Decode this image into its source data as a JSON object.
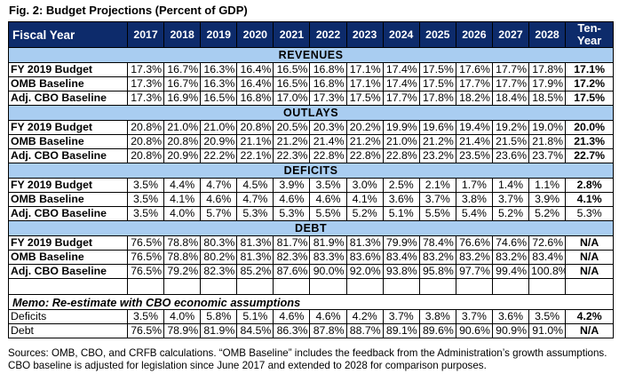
{
  "title": "Fig. 2: Budget Projections (Percent of GDP)",
  "header": {
    "label": "Fiscal Year",
    "years": [
      "2017",
      "2018",
      "2019",
      "2020",
      "2021",
      "2022",
      "2023",
      "2024",
      "2025",
      "2026",
      "2027",
      "2028"
    ],
    "ten_year": "Ten-Year",
    "ten_year_line1": "Ten-",
    "ten_year_line2": "Year"
  },
  "colors": {
    "header_bg": "#0d2b6b",
    "section_bg": "#a9cdf1",
    "header_text": "#ffffff"
  },
  "sections": [
    {
      "title": "REVENUES",
      "rows": [
        {
          "label": "FY 2019 Budget",
          "values": [
            "17.3%",
            "16.7%",
            "16.3%",
            "16.4%",
            "16.5%",
            "16.8%",
            "17.1%",
            "17.4%",
            "17.5%",
            "17.6%",
            "17.7%",
            "17.8%"
          ],
          "ten_year": "17.1%"
        },
        {
          "label": "OMB Baseline",
          "values": [
            "17.3%",
            "16.7%",
            "16.3%",
            "16.4%",
            "16.5%",
            "16.8%",
            "17.1%",
            "17.4%",
            "17.5%",
            "17.7%",
            "17.7%",
            "17.9%"
          ],
          "ten_year": "17.2%"
        },
        {
          "label": "Adj. CBO Baseline",
          "values": [
            "17.3%",
            "16.9%",
            "16.5%",
            "16.8%",
            "17.0%",
            "17.3%",
            "17.5%",
            "17.7%",
            "17.8%",
            "18.2%",
            "18.4%",
            "18.5%"
          ],
          "ten_year": "17.5%"
        }
      ]
    },
    {
      "title": "OUTLAYS",
      "rows": [
        {
          "label": "FY 2019 Budget",
          "values": [
            "20.8%",
            "21.0%",
            "21.0%",
            "20.8%",
            "20.5%",
            "20.3%",
            "20.2%",
            "19.9%",
            "19.6%",
            "19.4%",
            "19.2%",
            "19.0%"
          ],
          "ten_year": "20.0%"
        },
        {
          "label": "OMB Baseline",
          "values": [
            "20.8%",
            "20.8%",
            "20.9%",
            "21.1%",
            "21.2%",
            "21.4%",
            "21.2%",
            "21.0%",
            "21.2%",
            "21.4%",
            "21.5%",
            "21.8%"
          ],
          "ten_year": "21.3%"
        },
        {
          "label": "Adj. CBO Baseline",
          "values": [
            "20.8%",
            "20.9%",
            "22.2%",
            "22.1%",
            "22.3%",
            "22.8%",
            "22.8%",
            "22.8%",
            "23.2%",
            "23.5%",
            "23.6%",
            "23.7%"
          ],
          "ten_year": "22.7%"
        }
      ]
    },
    {
      "title": "DEFICITS",
      "rows": [
        {
          "label": "FY 2019 Budget",
          "values": [
            "3.5%",
            "4.4%",
            "4.7%",
            "4.5%",
            "3.9%",
            "3.5%",
            "3.0%",
            "2.5%",
            "2.1%",
            "1.7%",
            "1.4%",
            "1.1%"
          ],
          "ten_year": "2.8%"
        },
        {
          "label": "OMB Baseline",
          "values": [
            "3.5%",
            "4.1%",
            "4.6%",
            "4.7%",
            "4.6%",
            "4.6%",
            "4.1%",
            "3.6%",
            "3.7%",
            "3.8%",
            "3.7%",
            "3.9%"
          ],
          "ten_year": "4.1%"
        },
        {
          "label": "Adj. CBO Baseline",
          "values": [
            "3.5%",
            "4.0%",
            "5.7%",
            "5.3%",
            "5.3%",
            "5.5%",
            "5.2%",
            "5.1%",
            "5.5%",
            "5.4%",
            "5.2%",
            "5.2%"
          ],
          "ten_year": "5.3%"
        }
      ]
    },
    {
      "title": "DEBT",
      "rows": [
        {
          "label": "FY 2019 Budget",
          "values": [
            "76.5%",
            "78.8%",
            "80.3%",
            "81.3%",
            "81.7%",
            "81.9%",
            "81.3%",
            "79.9%",
            "78.4%",
            "76.6%",
            "74.6%",
            "72.6%"
          ],
          "ten_year": "N/A"
        },
        {
          "label": "OMB Baseline",
          "values": [
            "76.5%",
            "78.8%",
            "80.2%",
            "81.3%",
            "82.3%",
            "83.3%",
            "83.6%",
            "83.4%",
            "83.2%",
            "83.2%",
            "83.2%",
            "83.4%"
          ],
          "ten_year": "N/A"
        },
        {
          "label": "Adj. CBO Baseline",
          "values": [
            "76.5%",
            "79.2%",
            "82.3%",
            "85.2%",
            "87.6%",
            "90.0%",
            "92.0%",
            "93.8%",
            "95.8%",
            "97.7%",
            "99.4%",
            "100.8%"
          ],
          "ten_year": "N/A"
        }
      ]
    }
  ],
  "memo": {
    "title": "Memo: Re-estimate with CBO economic assumptions",
    "rows": [
      {
        "label": "Deficits",
        "values": [
          "3.5%",
          "4.0%",
          "5.8%",
          "5.1%",
          "4.6%",
          "4.6%",
          "4.2%",
          "3.7%",
          "3.8%",
          "3.7%",
          "3.6%",
          "3.5%"
        ],
        "ten_year": "4.2%"
      },
      {
        "label": "Debt",
        "values": [
          "76.5%",
          "78.9%",
          "81.9%",
          "84.5%",
          "86.3%",
          "87.8%",
          "88.7%",
          "89.1%",
          "89.6%",
          "90.6%",
          "90.9%",
          "91.0%"
        ],
        "ten_year": "N/A"
      }
    ]
  },
  "sources": "Sources: OMB, CBO, and CRFB calculations. “OMB Baseline” includes the feedback from the Administration’s growth assumptions. CBO baseline is adjusted for legislation since June 2017 and extended to 2028 for comparison purposes."
}
